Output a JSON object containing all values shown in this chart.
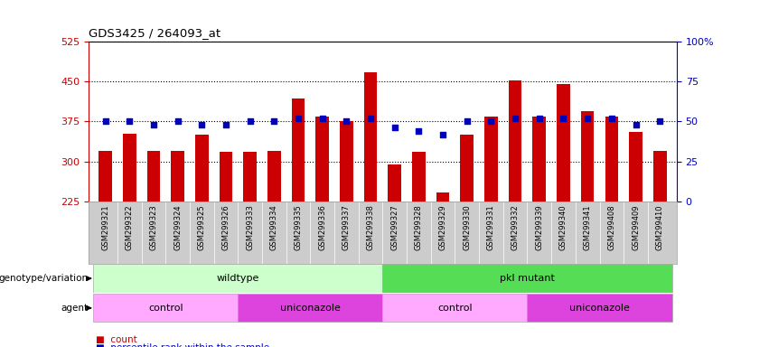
{
  "title": "GDS3425 / 264093_at",
  "samples": [
    "GSM299321",
    "GSM299322",
    "GSM299323",
    "GSM299324",
    "GSM299325",
    "GSM299326",
    "GSM299333",
    "GSM299334",
    "GSM299335",
    "GSM299336",
    "GSM299337",
    "GSM299338",
    "GSM299327",
    "GSM299328",
    "GSM299329",
    "GSM299330",
    "GSM299331",
    "GSM299332",
    "GSM299339",
    "GSM299340",
    "GSM299341",
    "GSM299408",
    "GSM299409",
    "GSM299410"
  ],
  "counts": [
    320,
    352,
    320,
    320,
    350,
    318,
    318,
    320,
    418,
    385,
    375,
    468,
    295,
    318,
    242,
    350,
    385,
    452,
    385,
    445,
    395,
    385,
    355,
    320
  ],
  "percentile_ranks": [
    50,
    50,
    48,
    50,
    48,
    48,
    50,
    50,
    52,
    52,
    50,
    52,
    46,
    44,
    42,
    50,
    50,
    52,
    52,
    52,
    52,
    52,
    48,
    50
  ],
  "ylim_left": [
    225,
    525
  ],
  "ylim_right": [
    0,
    100
  ],
  "yticks_left": [
    225,
    300,
    375,
    450,
    525
  ],
  "yticks_right": [
    0,
    25,
    50,
    75,
    100
  ],
  "ytick_labels_right": [
    "0",
    "25",
    "50",
    "75",
    "100%"
  ],
  "hlines": [
    300,
    375,
    450
  ],
  "bar_color": "#cc0000",
  "dot_color": "#0000bb",
  "bar_bottom": 225,
  "genotype_groups": [
    {
      "label": "wildtype",
      "start": 0,
      "end": 12,
      "color": "#ccffcc"
    },
    {
      "label": "pkl mutant",
      "start": 12,
      "end": 24,
      "color": "#55dd55"
    }
  ],
  "agent_groups": [
    {
      "label": "control",
      "start": 0,
      "end": 6,
      "color": "#ffaaff"
    },
    {
      "label": "uniconazole",
      "start": 6,
      "end": 12,
      "color": "#dd44dd"
    },
    {
      "label": "control",
      "start": 12,
      "end": 18,
      "color": "#ffaaff"
    },
    {
      "label": "uniconazole",
      "start": 18,
      "end": 24,
      "color": "#dd44dd"
    }
  ],
  "axis_color_left": "#cc0000",
  "axis_color_right": "#0000bb",
  "background_color": "#ffffff",
  "plot_bg_color": "#ffffff",
  "tick_label_bg": "#cccccc",
  "legend_count_color": "#cc0000",
  "legend_dot_color": "#0000bb"
}
